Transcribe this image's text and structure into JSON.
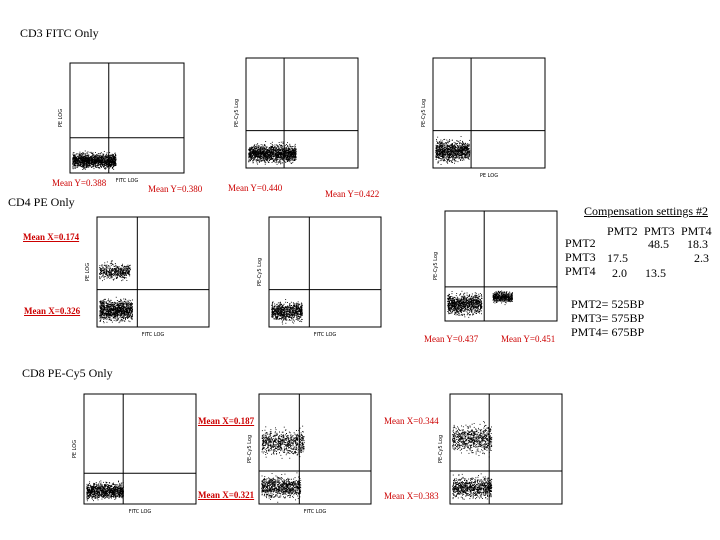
{
  "sections": [
    {
      "title": "CD3 FITC Only"
    },
    {
      "title": "CD4 PE Only"
    },
    {
      "title": "CD8 PE-Cy5 Only"
    }
  ],
  "chart_data": [
    {
      "type": "scatter",
      "row": 0,
      "col": 0,
      "xlabel": "FITC LOG",
      "ylabel": "PE LOG",
      "xlim": [
        0.1,
        1000
      ],
      "ylim": [
        0.1,
        1000
      ],
      "log_scale": true,
      "stats": [
        {
          "text": "Mean Y=0.388"
        },
        {
          "text": "Mean Y=0.380"
        }
      ],
      "clusters": [
        {
          "x": [
            0.12,
            4
          ],
          "y": [
            0.12,
            0.7
          ],
          "n": 1500
        }
      ]
    },
    {
      "type": "scatter",
      "row": 0,
      "col": 1,
      "xlabel": "",
      "ylabel": "PE-Cy5 Log",
      "xlim": [
        0.1,
        1000
      ],
      "ylim": [
        0.1,
        1000
      ],
      "log_scale": true,
      "stats": [
        {
          "text": "Mean Y=0.440"
        },
        {
          "text": "Mean Y=0.422"
        }
      ],
      "clusters": [
        {
          "x": [
            0.12,
            6
          ],
          "y": [
            0.12,
            1.0
          ],
          "n": 1500
        }
      ]
    },
    {
      "type": "scatter",
      "row": 0,
      "col": 2,
      "xlabel": "PE LOG",
      "ylabel": "PE-Cy5 Log",
      "xlim": [
        0.1,
        1000
      ],
      "ylim": [
        0.1,
        1000
      ],
      "log_scale": true,
      "stats": [],
      "clusters": [
        {
          "x": [
            0.12,
            2
          ],
          "y": [
            0.12,
            1.5
          ],
          "n": 1000
        }
      ]
    },
    {
      "type": "scatter",
      "row": 1,
      "col": 0,
      "xlabel": "FITC LOG",
      "ylabel": "PE LOG",
      "xlim": [
        0.1,
        1000
      ],
      "ylim": [
        0.1,
        1000
      ],
      "log_scale": true,
      "stats": [
        {
          "text": "Mean X=0.174"
        },
        {
          "text": "Mean X=0.326"
        }
      ],
      "clusters": [
        {
          "x": [
            0.12,
            1.5
          ],
          "y": [
            4,
            30
          ],
          "n": 450
        },
        {
          "x": [
            0.12,
            1.8
          ],
          "y": [
            0.12,
            1.5
          ],
          "n": 1100
        }
      ]
    },
    {
      "type": "scatter",
      "row": 1,
      "col": 1,
      "xlabel": "FITC LOG",
      "ylabel": "PE-Cy5 Log",
      "xlim": [
        0.1,
        1000
      ],
      "ylim": [
        0.1,
        1000
      ],
      "log_scale": true,
      "stats": [],
      "clusters": [
        {
          "x": [
            0.12,
            1.5
          ],
          "y": [
            0.12,
            1.2
          ],
          "n": 800
        }
      ]
    },
    {
      "type": "scatter",
      "row": 1,
      "col": 2,
      "xlabel": "",
      "ylabel": "PE-Cy5 Log",
      "xlim": [
        0.1,
        1000
      ],
      "ylim": [
        0.1,
        1000
      ],
      "log_scale": true,
      "stats": [
        {
          "text": "Mean Y=0.437"
        },
        {
          "text": "Mean Y=0.451"
        }
      ],
      "clusters": [
        {
          "x": [
            0.12,
            2
          ],
          "y": [
            0.12,
            1.5
          ],
          "n": 1000
        },
        {
          "x": [
            5,
            25
          ],
          "y": [
            0.4,
            1.5
          ],
          "n": 500
        }
      ]
    },
    {
      "type": "scatter",
      "row": 2,
      "col": 0,
      "xlabel": "FITC LOG",
      "ylabel": "PE LOG",
      "xlim": [
        0.1,
        1000
      ],
      "ylim": [
        0.1,
        1000
      ],
      "log_scale": true,
      "stats": [],
      "clusters": [
        {
          "x": [
            0.12,
            2.5
          ],
          "y": [
            0.12,
            0.8
          ],
          "n": 1000
        }
      ]
    },
    {
      "type": "scatter",
      "row": 2,
      "col": 1,
      "xlabel": "FITC LOG",
      "ylabel": "PE-Cy5 Log",
      "xlim": [
        0.1,
        1000
      ],
      "ylim": [
        0.1,
        1000
      ],
      "log_scale": true,
      "stats": [
        {
          "text": "Mean X=0.187"
        },
        {
          "text": "Mean X=0.321"
        }
      ],
      "clusters": [
        {
          "x": [
            0.12,
            4
          ],
          "y": [
            4,
            80
          ],
          "n": 700
        },
        {
          "x": [
            0.12,
            3
          ],
          "y": [
            0.12,
            1.5
          ],
          "n": 800
        }
      ]
    },
    {
      "type": "scatter",
      "row": 2,
      "col": 2,
      "xlabel": "",
      "ylabel": "PE-Cy5 Log",
      "xlim": [
        0.1,
        1000
      ],
      "ylim": [
        0.1,
        1000
      ],
      "log_scale": true,
      "stats": [
        {
          "text": "Mean X=0.344"
        },
        {
          "text": "Mean X=0.383"
        }
      ],
      "clusters": [
        {
          "x": [
            0.12,
            3
          ],
          "y": [
            5,
            120
          ],
          "n": 700
        },
        {
          "x": [
            0.12,
            3
          ],
          "y": [
            0.12,
            1.5
          ],
          "n": 800
        }
      ]
    }
  ],
  "compensation": {
    "title": "Compensation settings #2",
    "headers": [
      "PMT2",
      "PMT3",
      "PMT4"
    ],
    "rows": [
      {
        "label": "PMT2",
        "values": [
          "",
          "48.5",
          "18.3"
        ]
      },
      {
        "label": "PMT3",
        "values": [
          "17.5",
          "",
          "2.3"
        ]
      },
      {
        "label": "PMT4",
        "values": [
          "2.0",
          "13.5",
          ""
        ]
      }
    ],
    "filters": [
      "PMT2= 525BP",
      "PMT3= 575BP",
      "PMT4= 675BP"
    ]
  },
  "colors": {
    "stat_text": "#cc0000",
    "dots": "#000000"
  }
}
